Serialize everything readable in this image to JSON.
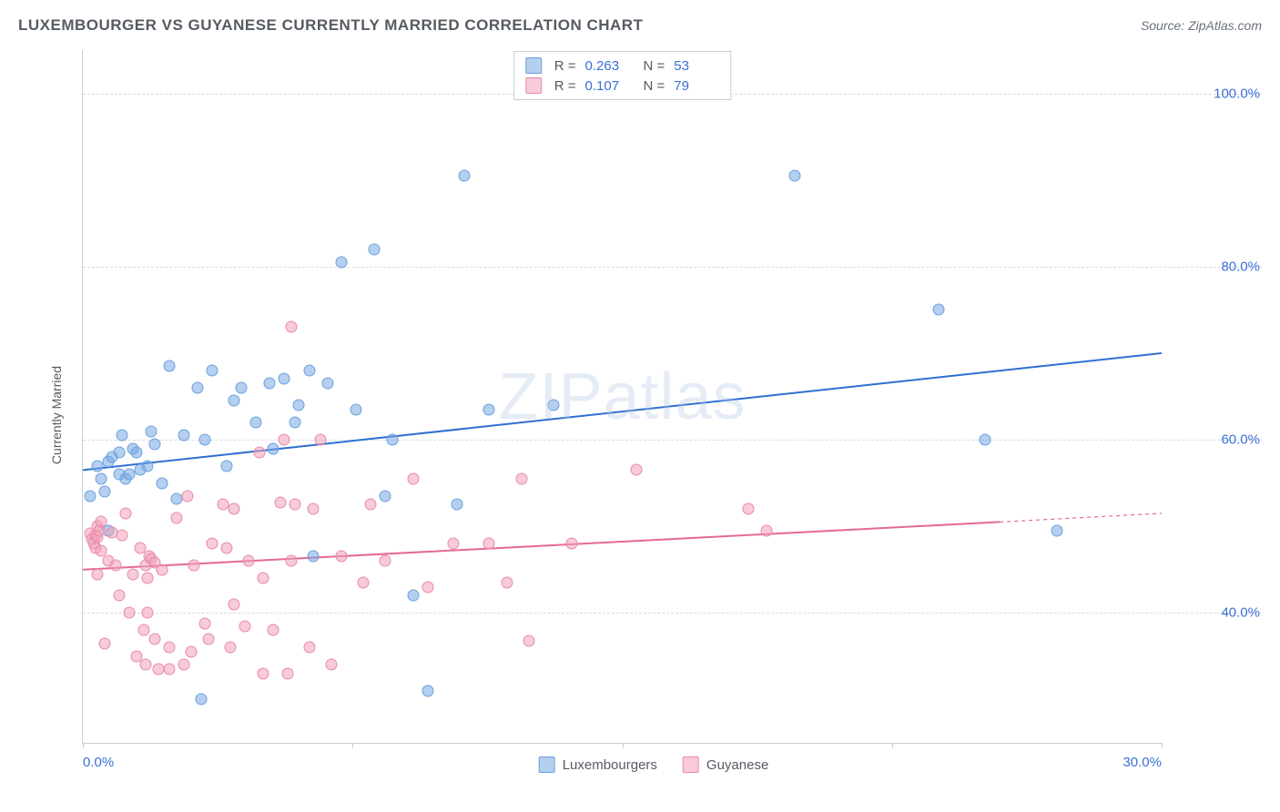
{
  "title": "LUXEMBOURGER VS GUYANESE CURRENTLY MARRIED CORRELATION CHART",
  "source": "Source: ZipAtlas.com",
  "watermark": "ZIPatlas",
  "chart": {
    "type": "scatter",
    "ylabel": "Currently Married",
    "xlim": [
      0,
      30
    ],
    "ylim": [
      25,
      105
    ],
    "xticks": [
      0,
      7.5,
      15,
      22.5,
      30
    ],
    "xtick_labels": [
      "0.0%",
      "",
      "",
      "",
      "30.0%"
    ],
    "yticks": [
      40,
      60,
      80,
      100
    ],
    "ytick_labels": [
      "40.0%",
      "60.0%",
      "80.0%",
      "100.0%"
    ],
    "grid_color": "#d7dbe0",
    "axis_color": "#c9ced4",
    "background_color": "#ffffff",
    "label_fontsize": 14,
    "tick_fontsize": 15,
    "tick_color": "#3b6fd6",
    "marker_radius": 6.5,
    "marker_border_width": 1.2,
    "line_width": 2,
    "series": [
      {
        "name": "Luxembourgers",
        "fill_color": "rgba(121,168,225,0.55)",
        "stroke_color": "#6aa0df",
        "line_color": "#2f6fd0",
        "R": "0.263",
        "N": "53",
        "trend": {
          "x1": 0,
          "y1": 56.5,
          "x2": 30,
          "y2": 70
        },
        "points": [
          [
            0.2,
            53.5
          ],
          [
            0.4,
            57
          ],
          [
            0.5,
            55.5
          ],
          [
            0.6,
            54
          ],
          [
            0.7,
            49.5
          ],
          [
            0.7,
            57.5
          ],
          [
            0.8,
            58
          ],
          [
            1.0,
            56
          ],
          [
            1.0,
            58.5
          ],
          [
            1.1,
            60.5
          ],
          [
            1.2,
            55.5
          ],
          [
            1.3,
            56
          ],
          [
            1.4,
            59
          ],
          [
            1.5,
            58.5
          ],
          [
            1.6,
            56.5
          ],
          [
            1.8,
            57
          ],
          [
            1.9,
            61
          ],
          [
            2.0,
            59.5
          ],
          [
            2.2,
            55
          ],
          [
            2.4,
            68.5
          ],
          [
            2.6,
            53.2
          ],
          [
            2.8,
            60.5
          ],
          [
            3.2,
            66
          ],
          [
            3.3,
            30
          ],
          [
            3.4,
            60
          ],
          [
            3.6,
            68
          ],
          [
            4.0,
            57
          ],
          [
            4.2,
            64.5
          ],
          [
            4.4,
            66
          ],
          [
            4.8,
            62
          ],
          [
            5.2,
            66.5
          ],
          [
            5.3,
            59
          ],
          [
            5.6,
            67
          ],
          [
            5.9,
            62
          ],
          [
            6.0,
            64
          ],
          [
            6.3,
            68
          ],
          [
            6.4,
            46.5
          ],
          [
            6.8,
            66.5
          ],
          [
            7.2,
            80.5
          ],
          [
            7.6,
            63.5
          ],
          [
            8.1,
            82
          ],
          [
            8.4,
            53.5
          ],
          [
            8.6,
            60
          ],
          [
            9.2,
            42
          ],
          [
            9.6,
            31
          ],
          [
            10.4,
            52.5
          ],
          [
            10.6,
            90.5
          ],
          [
            11.3,
            63.5
          ],
          [
            13.1,
            64
          ],
          [
            19.8,
            90.5
          ],
          [
            23.8,
            75
          ],
          [
            25.1,
            60
          ],
          [
            27.1,
            49.5
          ]
        ]
      },
      {
        "name": "Guyanese",
        "fill_color": "rgba(240,160,185,0.55)",
        "stroke_color": "#e88aa8",
        "line_color": "#e56a93",
        "R": "0.107",
        "N": "79",
        "trend": {
          "x1": 0,
          "y1": 45,
          "x2": 25.5,
          "y2": 50.5
        },
        "trend_dash": {
          "x1": 25.5,
          "y1": 50.5,
          "x2": 30,
          "y2": 51.5
        },
        "points": [
          [
            0.2,
            49.2
          ],
          [
            0.25,
            48.5
          ],
          [
            0.3,
            48
          ],
          [
            0.35,
            47.5
          ],
          [
            0.35,
            49
          ],
          [
            0.4,
            48.8
          ],
          [
            0.4,
            50
          ],
          [
            0.4,
            44.5
          ],
          [
            0.45,
            49.5
          ],
          [
            0.5,
            47.2
          ],
          [
            0.5,
            50.5
          ],
          [
            0.6,
            36.5
          ],
          [
            0.7,
            46
          ],
          [
            0.8,
            49.3
          ],
          [
            0.9,
            45.5
          ],
          [
            1.0,
            42
          ],
          [
            1.1,
            49
          ],
          [
            1.2,
            51.5
          ],
          [
            1.3,
            40
          ],
          [
            1.4,
            44.5
          ],
          [
            1.5,
            35
          ],
          [
            1.6,
            47.5
          ],
          [
            1.7,
            38
          ],
          [
            1.75,
            45.5
          ],
          [
            1.75,
            34
          ],
          [
            1.8,
            44
          ],
          [
            1.8,
            40
          ],
          [
            1.85,
            46.5
          ],
          [
            1.9,
            46.2
          ],
          [
            2.0,
            37
          ],
          [
            2.0,
            45.8
          ],
          [
            2.1,
            33.5
          ],
          [
            2.2,
            45
          ],
          [
            2.4,
            36
          ],
          [
            2.4,
            33.5
          ],
          [
            2.6,
            51
          ],
          [
            2.8,
            34
          ],
          [
            2.9,
            53.5
          ],
          [
            3.0,
            35.5
          ],
          [
            3.1,
            45.5
          ],
          [
            3.4,
            38.8
          ],
          [
            3.5,
            37
          ],
          [
            3.6,
            48
          ],
          [
            3.9,
            52.5
          ],
          [
            4.0,
            47.5
          ],
          [
            4.1,
            36
          ],
          [
            4.2,
            41
          ],
          [
            4.2,
            52
          ],
          [
            4.5,
            38.5
          ],
          [
            4.6,
            46
          ],
          [
            4.9,
            58.5
          ],
          [
            5.0,
            44
          ],
          [
            5.0,
            33
          ],
          [
            5.3,
            38
          ],
          [
            5.5,
            52.8
          ],
          [
            5.6,
            60
          ],
          [
            5.7,
            33
          ],
          [
            5.8,
            73
          ],
          [
            5.8,
            46
          ],
          [
            5.9,
            52.5
          ],
          [
            6.3,
            36
          ],
          [
            6.4,
            52
          ],
          [
            6.6,
            60
          ],
          [
            6.9,
            34
          ],
          [
            7.2,
            46.5
          ],
          [
            7.8,
            43.5
          ],
          [
            8.0,
            52.5
          ],
          [
            8.4,
            46
          ],
          [
            9.2,
            55.5
          ],
          [
            9.6,
            43
          ],
          [
            10.3,
            48
          ],
          [
            11.3,
            48
          ],
          [
            11.8,
            43.5
          ],
          [
            12.2,
            55.5
          ],
          [
            12.4,
            36.8
          ],
          [
            13.6,
            48
          ],
          [
            15.4,
            56.5
          ],
          [
            18.5,
            52
          ],
          [
            19.0,
            49.5
          ]
        ]
      }
    ]
  },
  "legend_top": {
    "r_label": "R =",
    "n_label": "N ="
  },
  "legend_bottom": {
    "items": [
      "Luxembourgers",
      "Guyanese"
    ]
  }
}
